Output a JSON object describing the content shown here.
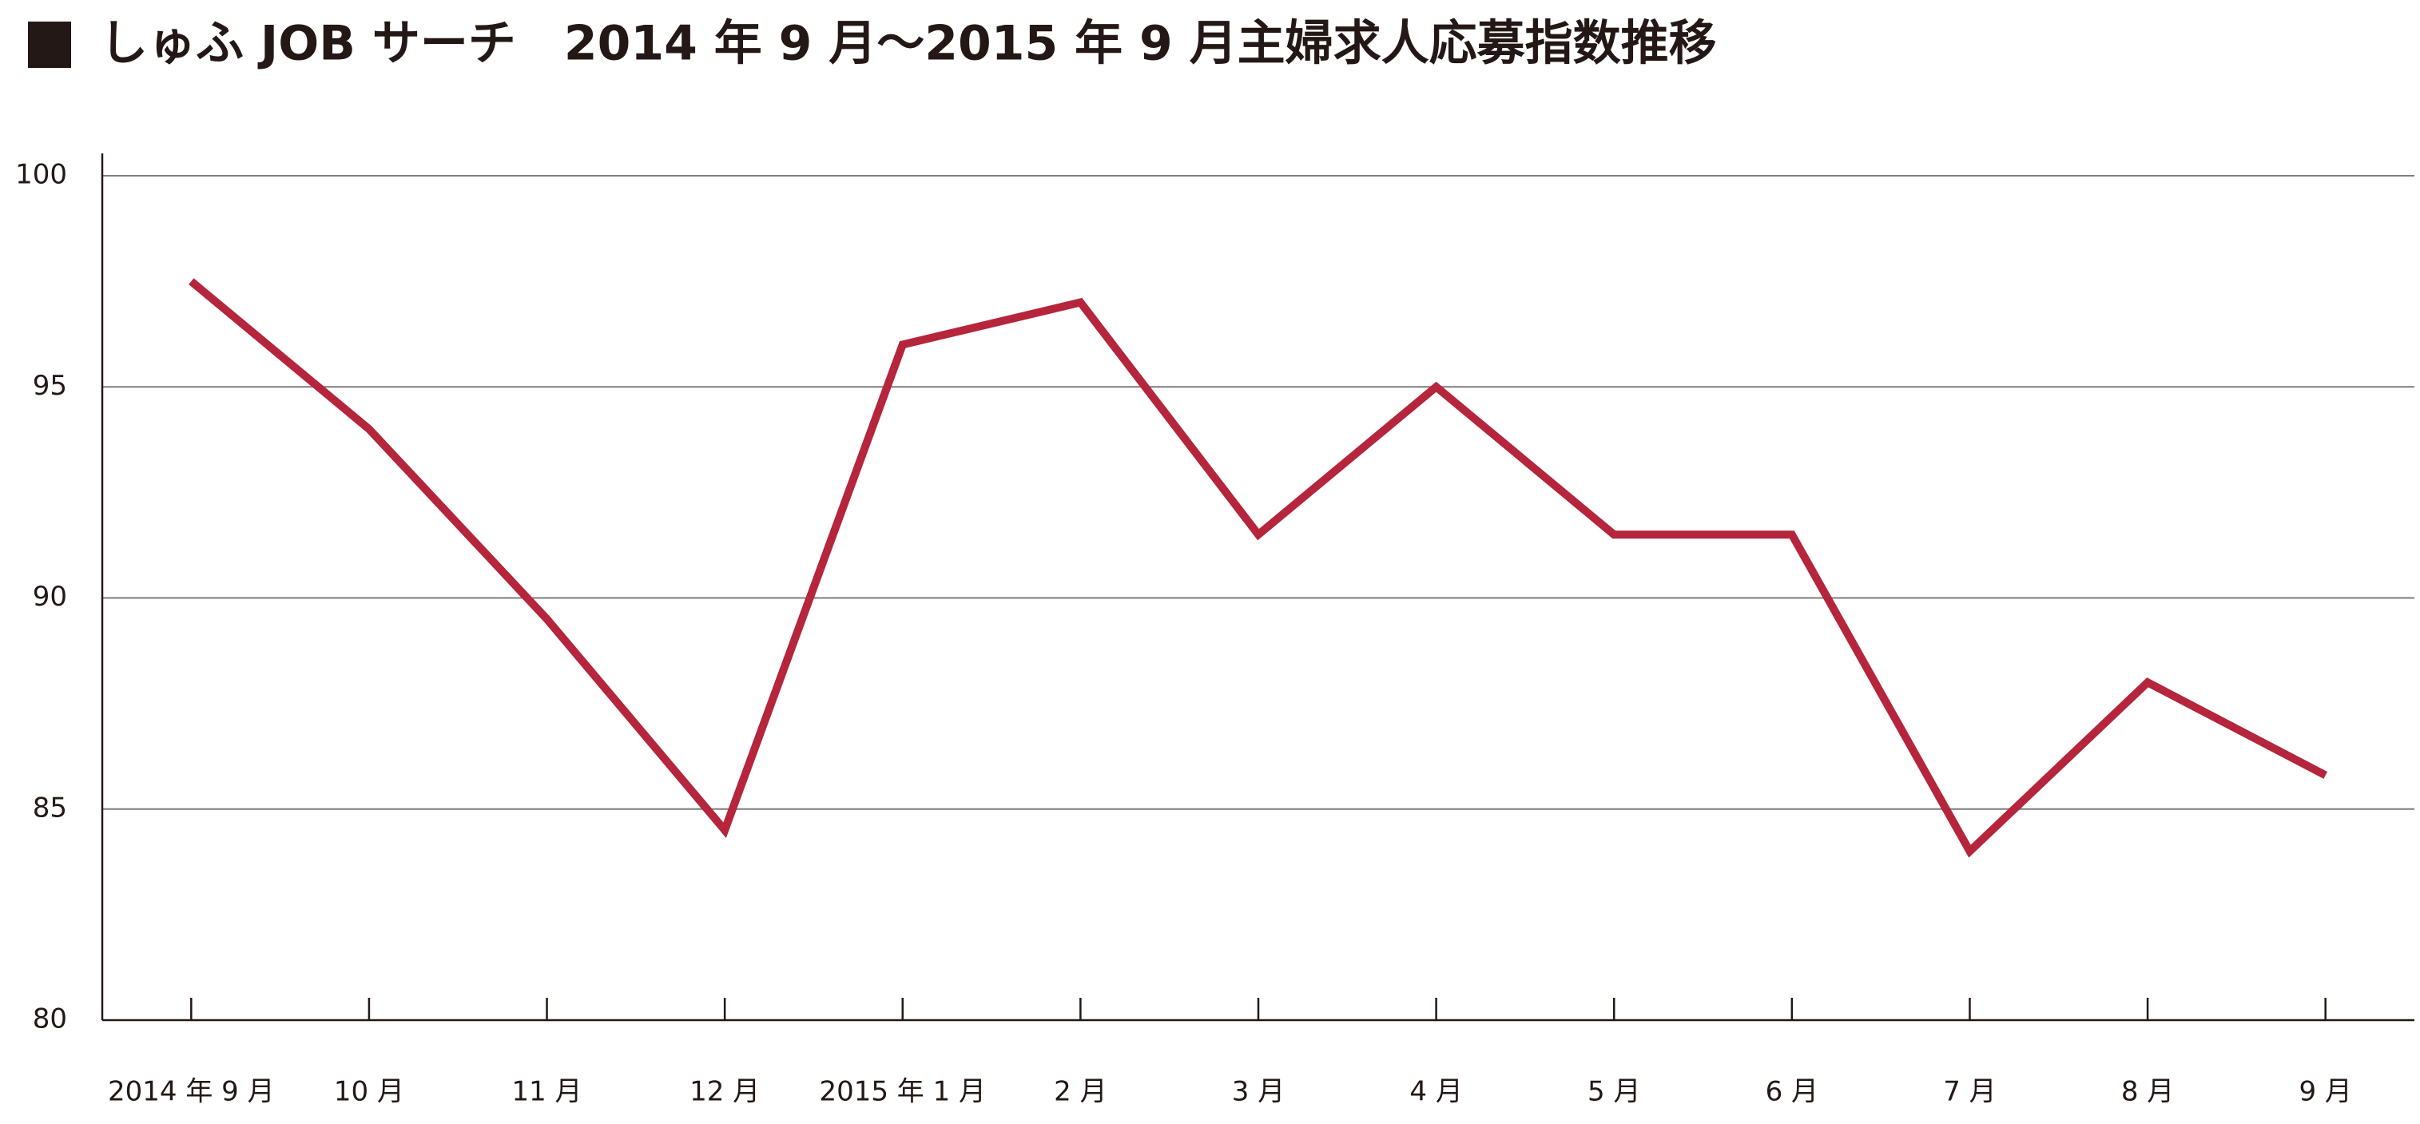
{
  "chart_data": {
    "type": "line",
    "title": "しゅふ JOB サーチ　2014 年 9 月〜2015 年 9 月主婦求人応募指数推移",
    "categories": [
      "2014 年 9 月",
      "10 月",
      "11 月",
      "12 月",
      "2015 年 1 月",
      "2 月",
      "3 月",
      "4 月",
      "5 月",
      "6 月",
      "7 月",
      "8 月",
      "9 月"
    ],
    "values": [
      97.5,
      94.0,
      89.5,
      84.5,
      96.0,
      97.0,
      91.5,
      95.0,
      91.5,
      91.5,
      84.0,
      88.0,
      85.8
    ],
    "color": "#b5253b",
    "ylim": [
      80,
      100
    ],
    "yticks": [
      80,
      85,
      90,
      95,
      100
    ],
    "grid": true
  }
}
